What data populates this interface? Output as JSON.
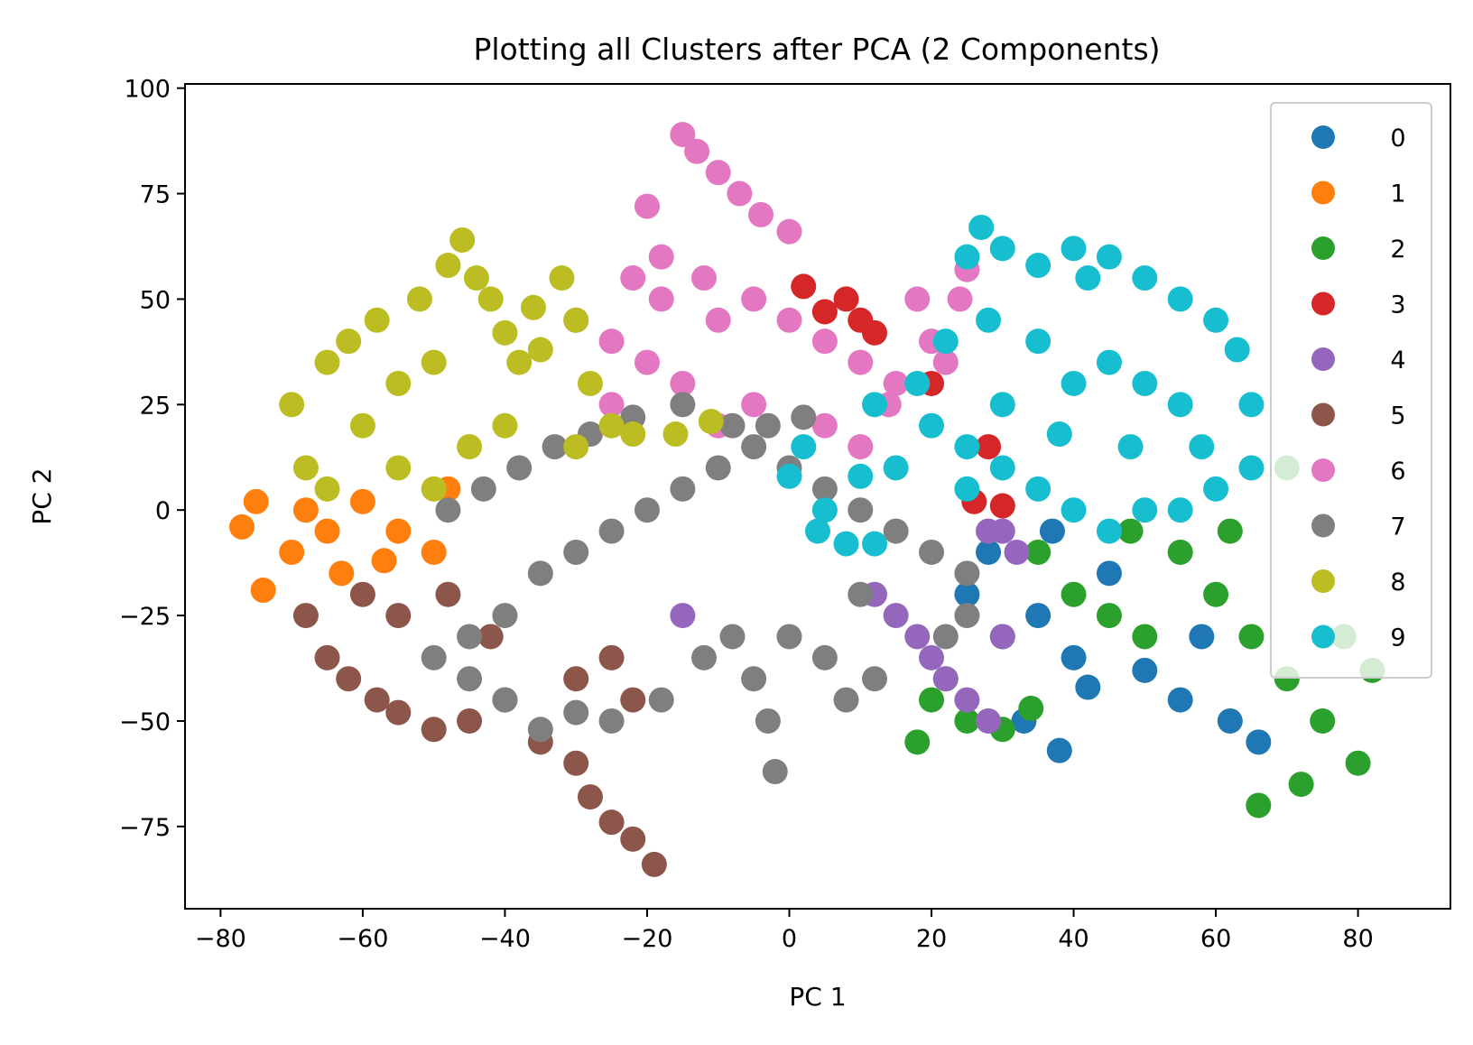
{
  "chart_data": {
    "type": "scatter",
    "title": "Plotting all Clusters after PCA (2 Components)",
    "xlabel": "PC 1",
    "ylabel": "PC 2",
    "xlim": [
      -85,
      93
    ],
    "ylim": [
      -94.5,
      101
    ],
    "xticks": [
      -80,
      -60,
      -40,
      -20,
      0,
      20,
      40,
      60,
      80
    ],
    "xtick_labels": [
      "−80",
      "−60",
      "−40",
      "−20",
      "0",
      "20",
      "40",
      "60",
      "80"
    ],
    "yticks": [
      -75,
      -50,
      -25,
      0,
      25,
      50,
      75,
      100
    ],
    "ytick_labels": [
      "−75",
      "−50",
      "−25",
      "0",
      "25",
      "50",
      "75",
      "100"
    ],
    "grid": false,
    "legend_position": "top-right",
    "series": [
      {
        "name": "0",
        "color": "#1f77b4",
        "points": [
          [
            25,
            -20
          ],
          [
            30,
            -30
          ],
          [
            35,
            -25
          ],
          [
            40,
            -35
          ],
          [
            38,
            -57
          ],
          [
            33,
            -50
          ],
          [
            42,
            -42
          ],
          [
            50,
            -38
          ],
          [
            55,
            -45
          ],
          [
            62,
            -50
          ],
          [
            66,
            -55
          ],
          [
            58,
            -30
          ],
          [
            45,
            -15
          ],
          [
            37,
            -5
          ],
          [
            28,
            -10
          ]
        ]
      },
      {
        "name": "1",
        "color": "#ff7f0e",
        "points": [
          [
            -77,
            -4
          ],
          [
            -75,
            2
          ],
          [
            -74,
            -19
          ],
          [
            -70,
            -10
          ],
          [
            -68,
            0
          ],
          [
            -65,
            -5
          ],
          [
            -60,
            2
          ],
          [
            -55,
            -5
          ],
          [
            -50,
            -10
          ],
          [
            -48,
            5
          ],
          [
            -57,
            -12
          ],
          [
            -63,
            -15
          ]
        ]
      },
      {
        "name": "2",
        "color": "#2ca02c",
        "points": [
          [
            35,
            -10
          ],
          [
            40,
            -20
          ],
          [
            45,
            -25
          ],
          [
            50,
            -30
          ],
          [
            60,
            -20
          ],
          [
            65,
            -30
          ],
          [
            70,
            -40
          ],
          [
            75,
            -50
          ],
          [
            80,
            -60
          ],
          [
            82,
            -38
          ],
          [
            66,
            -70
          ],
          [
            72,
            -65
          ],
          [
            78,
            -30
          ],
          [
            70,
            10
          ],
          [
            62,
            -5
          ],
          [
            55,
            -10
          ],
          [
            48,
            -5
          ],
          [
            20,
            -45
          ],
          [
            25,
            -50
          ],
          [
            30,
            -52
          ],
          [
            34,
            -47
          ],
          [
            18,
            -55
          ],
          [
            22,
            -40
          ]
        ]
      },
      {
        "name": "3",
        "color": "#d62728",
        "points": [
          [
            2,
            53
          ],
          [
            8,
            50
          ],
          [
            5,
            47
          ],
          [
            10,
            45
          ],
          [
            12,
            42
          ],
          [
            20,
            30
          ],
          [
            28,
            15
          ],
          [
            26,
            2
          ],
          [
            30,
            1
          ]
        ]
      },
      {
        "name": "4",
        "color": "#9467bd",
        "points": [
          [
            12,
            -20
          ],
          [
            15,
            -25
          ],
          [
            18,
            -30
          ],
          [
            20,
            -35
          ],
          [
            22,
            -40
          ],
          [
            25,
            -45
          ],
          [
            28,
            -50
          ],
          [
            30,
            -30
          ],
          [
            32,
            -10
          ],
          [
            28,
            -5
          ],
          [
            30,
            -5
          ],
          [
            -15,
            -25
          ]
        ]
      },
      {
        "name": "5",
        "color": "#8c564b",
        "points": [
          [
            -68,
            -25
          ],
          [
            -65,
            -35
          ],
          [
            -62,
            -40
          ],
          [
            -58,
            -45
          ],
          [
            -55,
            -48
          ],
          [
            -50,
            -52
          ],
          [
            -45,
            -50
          ],
          [
            -40,
            -45
          ],
          [
            -35,
            -55
          ],
          [
            -30,
            -60
          ],
          [
            -28,
            -68
          ],
          [
            -25,
            -74
          ],
          [
            -22,
            -78
          ],
          [
            -19,
            -84
          ],
          [
            -55,
            -25
          ],
          [
            -48,
            -20
          ],
          [
            -60,
            -20
          ],
          [
            -42,
            -30
          ],
          [
            -30,
            -40
          ],
          [
            -22,
            -45
          ],
          [
            -25,
            -35
          ]
        ]
      },
      {
        "name": "6",
        "color": "#e377c2",
        "points": [
          [
            -15,
            89
          ],
          [
            -13,
            85
          ],
          [
            -10,
            80
          ],
          [
            -7,
            75
          ],
          [
            -4,
            70
          ],
          [
            0,
            66
          ],
          [
            -20,
            72
          ],
          [
            -18,
            60
          ],
          [
            -22,
            55
          ],
          [
            -30,
            45
          ],
          [
            -25,
            40
          ],
          [
            -20,
            35
          ],
          [
            -10,
            45
          ],
          [
            -5,
            50
          ],
          [
            0,
            45
          ],
          [
            5,
            40
          ],
          [
            10,
            35
          ],
          [
            15,
            30
          ],
          [
            18,
            50
          ],
          [
            20,
            40
          ],
          [
            22,
            35
          ],
          [
            25,
            57
          ],
          [
            24,
            50
          ],
          [
            -15,
            30
          ],
          [
            -5,
            25
          ],
          [
            5,
            20
          ],
          [
            10,
            15
          ],
          [
            14,
            25
          ],
          [
            -10,
            20
          ],
          [
            -25,
            25
          ],
          [
            -18,
            50
          ],
          [
            -12,
            55
          ]
        ]
      },
      {
        "name": "7",
        "color": "#7f7f7f",
        "points": [
          [
            -50,
            -35
          ],
          [
            -45,
            -30
          ],
          [
            -40,
            -25
          ],
          [
            -35,
            -15
          ],
          [
            -30,
            -10
          ],
          [
            -25,
            -5
          ],
          [
            -20,
            0
          ],
          [
            -15,
            5
          ],
          [
            -10,
            10
          ],
          [
            -5,
            15
          ],
          [
            0,
            10
          ],
          [
            5,
            5
          ],
          [
            10,
            0
          ],
          [
            15,
            -5
          ],
          [
            20,
            -10
          ],
          [
            25,
            -15
          ],
          [
            -48,
            0
          ],
          [
            -43,
            5
          ],
          [
            -38,
            10
          ],
          [
            -33,
            15
          ],
          [
            -28,
            18
          ],
          [
            -22,
            22
          ],
          [
            -15,
            25
          ],
          [
            -8,
            20
          ],
          [
            -3,
            20
          ],
          [
            2,
            22
          ],
          [
            -2,
            -62
          ],
          [
            -3,
            -50
          ],
          [
            -5,
            -40
          ],
          [
            -8,
            -30
          ],
          [
            -12,
            -35
          ],
          [
            -18,
            -45
          ],
          [
            -25,
            -50
          ],
          [
            -30,
            -48
          ],
          [
            -35,
            -52
          ],
          [
            -40,
            -45
          ],
          [
            -45,
            -40
          ],
          [
            0,
            -30
          ],
          [
            5,
            -35
          ],
          [
            8,
            -45
          ],
          [
            12,
            -40
          ],
          [
            22,
            -30
          ],
          [
            25,
            -25
          ],
          [
            10,
            -20
          ]
        ]
      },
      {
        "name": "8",
        "color": "#bcbd22",
        "points": [
          [
            -70,
            25
          ],
          [
            -68,
            10
          ],
          [
            -65,
            35
          ],
          [
            -62,
            40
          ],
          [
            -60,
            20
          ],
          [
            -58,
            45
          ],
          [
            -55,
            30
          ],
          [
            -52,
            50
          ],
          [
            -50,
            35
          ],
          [
            -48,
            58
          ],
          [
            -46,
            64
          ],
          [
            -44,
            55
          ],
          [
            -42,
            50
          ],
          [
            -40,
            42
          ],
          [
            -38,
            35
          ],
          [
            -35,
            38
          ],
          [
            -32,
            55
          ],
          [
            -30,
            45
          ],
          [
            -28,
            30
          ],
          [
            -25,
            20
          ],
          [
            -22,
            18
          ],
          [
            -16,
            18
          ],
          [
            -11,
            21
          ],
          [
            -45,
            15
          ],
          [
            -55,
            10
          ],
          [
            -40,
            20
          ],
          [
            -30,
            15
          ],
          [
            -50,
            5
          ],
          [
            -65,
            5
          ],
          [
            -36,
            48
          ]
        ]
      },
      {
        "name": "9",
        "color": "#17becf",
        "points": [
          [
            25,
            60
          ],
          [
            27,
            67
          ],
          [
            30,
            62
          ],
          [
            35,
            58
          ],
          [
            40,
            62
          ],
          [
            42,
            55
          ],
          [
            45,
            60
          ],
          [
            50,
            55
          ],
          [
            55,
            50
          ],
          [
            60,
            45
          ],
          [
            63,
            38
          ],
          [
            65,
            25
          ],
          [
            65,
            10
          ],
          [
            60,
            5
          ],
          [
            55,
            0
          ],
          [
            50,
            0
          ],
          [
            45,
            -5
          ],
          [
            40,
            0
          ],
          [
            35,
            5
          ],
          [
            30,
            10
          ],
          [
            25,
            15
          ],
          [
            20,
            20
          ],
          [
            15,
            10
          ],
          [
            10,
            8
          ],
          [
            5,
            0
          ],
          [
            2,
            15
          ],
          [
            0,
            8
          ],
          [
            4,
            -5
          ],
          [
            8,
            -8
          ],
          [
            12,
            -8
          ],
          [
            18,
            30
          ],
          [
            22,
            40
          ],
          [
            28,
            45
          ],
          [
            35,
            40
          ],
          [
            40,
            30
          ],
          [
            45,
            35
          ],
          [
            50,
            30
          ],
          [
            55,
            25
          ],
          [
            58,
            15
          ],
          [
            12,
            25
          ],
          [
            30,
            25
          ],
          [
            38,
            18
          ],
          [
            48,
            15
          ],
          [
            25,
            5
          ]
        ]
      }
    ]
  }
}
